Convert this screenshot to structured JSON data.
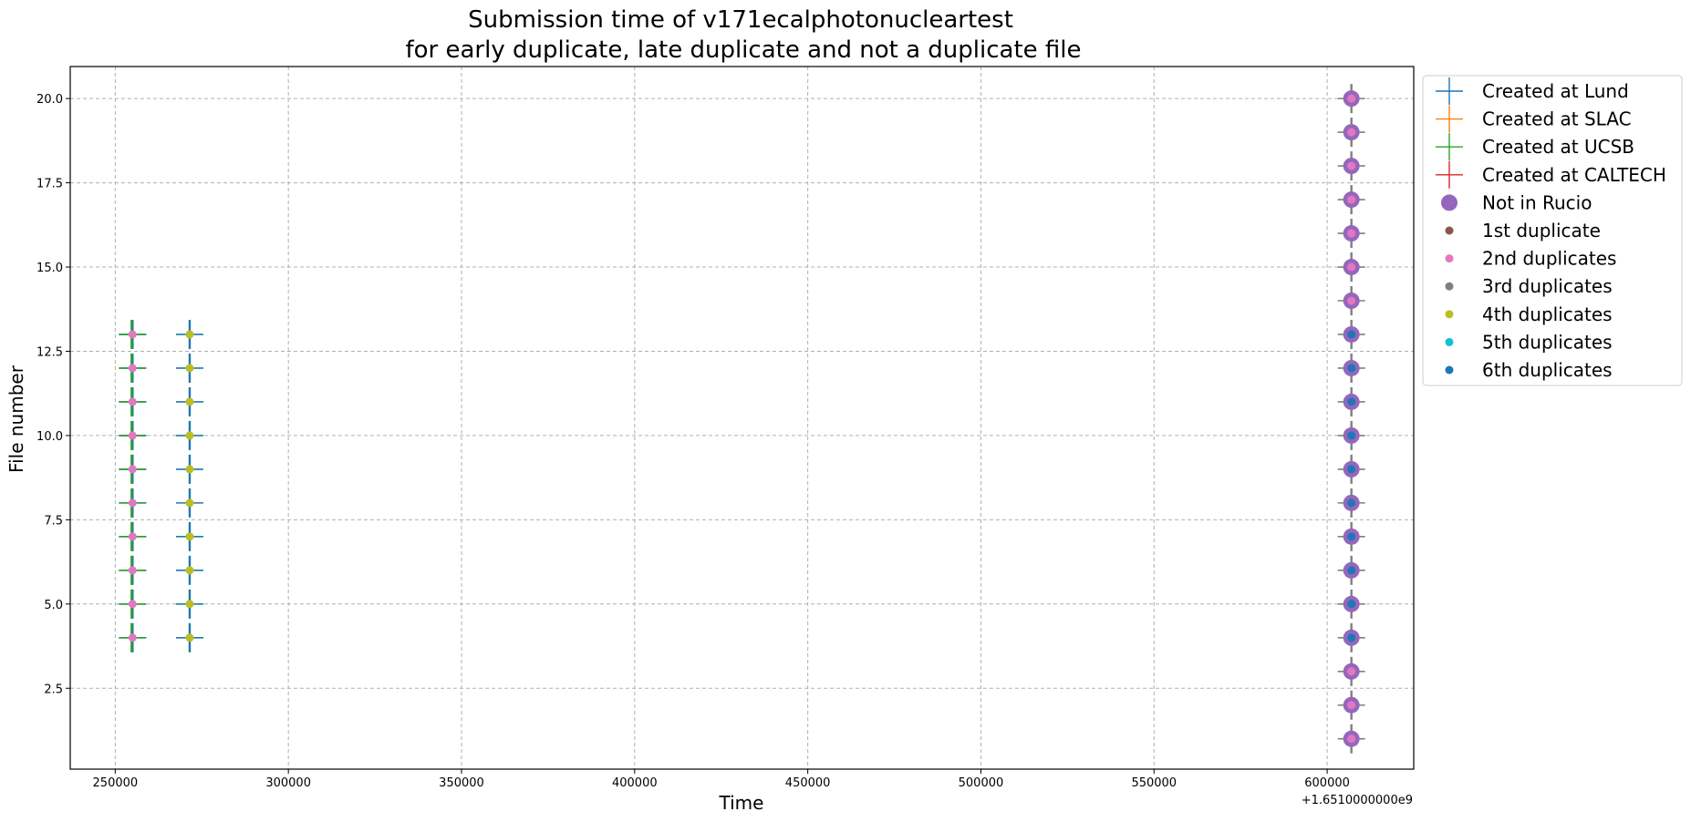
{
  "chart_data": {
    "type": "scatter",
    "title_line1": "Submission time of v171ecalphotonucleartest",
    "title_line2": "for early duplicate, late duplicate and not a duplicate file",
    "xlabel": "Time",
    "ylabel": "File number",
    "x_offset_label": "+1.6510000000e9",
    "xlim": [
      237000,
      625000
    ],
    "ylim": [
      0.1,
      20.95
    ],
    "x_ticks": [
      250000,
      300000,
      350000,
      400000,
      450000,
      500000,
      550000,
      600000
    ],
    "x_tick_labels": [
      "250000",
      "300000",
      "350000",
      "400000",
      "450000",
      "500000",
      "550000",
      "600000"
    ],
    "y_ticks": [
      2.5,
      5.0,
      7.5,
      10.0,
      12.5,
      15.0,
      17.5,
      20.0
    ],
    "y_tick_labels": [
      "2.5",
      "5.0",
      "7.5",
      "10.0",
      "12.5",
      "15.0",
      "17.5",
      "20.0"
    ],
    "grid": true,
    "legend_placement": "outside-right-top",
    "legend": [
      {
        "label": "Created at Lund",
        "marker": "plus",
        "color": "#1f77b4"
      },
      {
        "label": "Created at SLAC",
        "marker": "plus",
        "color": "#ff7f0e"
      },
      {
        "label": "Created at UCSB",
        "marker": "plus",
        "color": "#2ca02c"
      },
      {
        "label": "Created at CALTECH",
        "marker": "plus",
        "color": "#d62728"
      },
      {
        "label": "Not in Rucio",
        "marker": "big-circle",
        "color": "#9467bd"
      },
      {
        "label": "1st duplicate",
        "marker": "dot",
        "color": "#8c564b"
      },
      {
        "label": "2nd duplicates",
        "marker": "dot",
        "color": "#e377c2"
      },
      {
        "label": "3rd duplicates",
        "marker": "dot",
        "color": "#7f7f7f"
      },
      {
        "label": "4th duplicates",
        "marker": "dot",
        "color": "#bcbd22"
      },
      {
        "label": "5th duplicates",
        "marker": "dot",
        "color": "#17becf"
      },
      {
        "label": "6th duplicates",
        "marker": "dot",
        "color": "#1f77b4"
      }
    ],
    "groups": [
      {
        "name": "early",
        "x": 255000,
        "file_numbers": [
          4,
          5,
          6,
          7,
          8,
          9,
          10,
          11,
          12,
          13
        ],
        "plus_colors": [
          "#1f77b4",
          "#2ca02c"
        ],
        "big_circle": false,
        "dot_color": "#e377c2"
      },
      {
        "name": "late",
        "x": 271500,
        "file_numbers": [
          4,
          5,
          6,
          7,
          8,
          9,
          10,
          11,
          12,
          13
        ],
        "plus_colors": [
          "#1f77b4"
        ],
        "big_circle": false,
        "dot_color": "#bcbd22"
      },
      {
        "name": "not-duplicate",
        "x": 607000,
        "file_numbers": [
          1,
          2,
          3,
          4,
          5,
          6,
          7,
          8,
          9,
          10,
          11,
          12,
          13,
          14,
          15,
          16,
          17,
          18,
          19,
          20
        ],
        "plus_colors": [
          "#7f7f7f"
        ],
        "big_circle": true,
        "dot_colors": [
          "#e377c2",
          "#e377c2",
          "#e377c2",
          "#1f77b4",
          "#1f77b4",
          "#1f77b4",
          "#1f77b4",
          "#1f77b4",
          "#1f77b4",
          "#1f77b4",
          "#1f77b4",
          "#1f77b4",
          "#1f77b4",
          "#e377c2",
          "#e377c2",
          "#e377c2",
          "#e377c2",
          "#e377c2",
          "#e377c2",
          "#e377c2"
        ]
      }
    ]
  }
}
